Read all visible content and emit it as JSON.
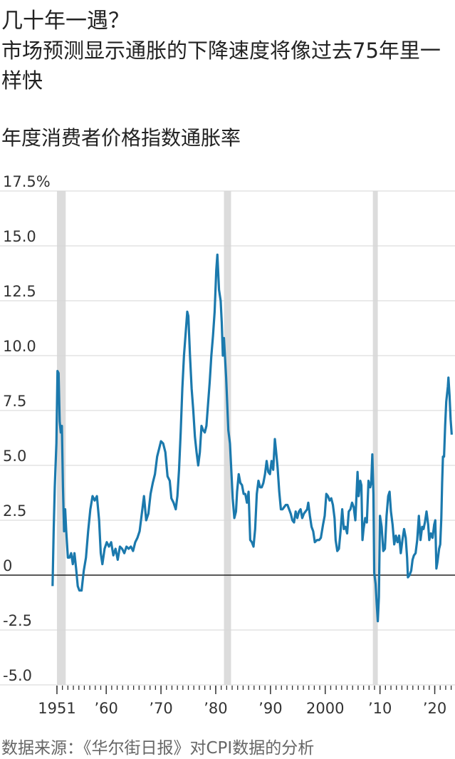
{
  "chart_data": {
    "type": "line",
    "title": "几十年一遇？",
    "subtitle": "市场预测显示通胀的下降速度将像过去75年里一样快",
    "y_label": "年度消费者价格指数通胀率",
    "source": "数据来源：《华尔街日报》对CPI数据的分析",
    "xlim": [
      1940.6,
      2023.7
    ],
    "ylim": [
      -5,
      17.5
    ],
    "yticks": [
      {
        "value": -5,
        "label": "-5.0"
      },
      {
        "value": -2.5,
        "label": "-2.5"
      },
      0,
      {
        "value": 2.5,
        "label": "2.5"
      },
      {
        "value": 5,
        "label": "5.0"
      },
      {
        "value": 7.5,
        "label": "7.5"
      },
      {
        "value": 10,
        "label": "10.0"
      },
      {
        "value": 12.5,
        "label": "12.5"
      },
      {
        "value": 15,
        "label": "15.0"
      },
      {
        "value": 17.5,
        "label": "17.5%"
      }
    ],
    "xticks": [
      1951,
      {
        "value": 1960,
        "label": "’60"
      },
      {
        "value": 1970,
        "label": "’70"
      },
      {
        "value": 1980,
        "label": "’80"
      },
      {
        "value": 1990,
        "label": "’90"
      },
      2000,
      {
        "value": 2010,
        "label": "’10"
      },
      {
        "value": 2020,
        "label": "’20"
      }
    ],
    "minor_xticks": [
      1951,
      1952,
      1953,
      1954,
      1955,
      1956,
      1957,
      1958,
      1959,
      1960,
      1961,
      1962,
      1963,
      1964,
      1965,
      1966,
      1967,
      1968,
      1969,
      1970,
      1971,
      1972,
      1973,
      1974,
      1975,
      1976,
      1977,
      1978,
      1979,
      1980,
      1981,
      1982,
      1983,
      1984,
      1985,
      1986,
      1987,
      1988,
      1989,
      1990,
      1991,
      1992,
      1993,
      1994,
      1995,
      1996,
      1997,
      1998,
      1999,
      2000,
      2001,
      2002,
      2003,
      2004,
      2005,
      2006,
      2007,
      2008,
      2009,
      2010,
      2011,
      2012,
      2013,
      2014,
      2015,
      2016,
      2017,
      2018,
      2019,
      2020,
      2021,
      2022,
      2023
    ],
    "shaded_periods": [
      [
        1951.0,
        1952.6
      ],
      [
        1981.5,
        1982.8
      ],
      [
        2008.7,
        2009.6
      ]
    ],
    "grid": true,
    "series": [
      {
        "color": "#1b79ad",
        "x": [
          1950.2,
          1950.4,
          1950.6,
          1950.9,
          1951.1,
          1951.3,
          1951.5,
          1951.7,
          1951.9,
          1952.1,
          1952.3,
          1952.5,
          1952.7,
          1953.0,
          1953.3,
          1953.6,
          1953.9,
          1954.2,
          1954.5,
          1954.8,
          1955.1,
          1955.5,
          1955.9,
          1956.3,
          1956.7,
          1957.1,
          1957.5,
          1957.9,
          1958.3,
          1958.7,
          1959.0,
          1959.3,
          1959.7,
          1960.1,
          1960.5,
          1960.9,
          1961.3,
          1961.7,
          1962.1,
          1962.5,
          1962.9,
          1963.3,
          1963.7,
          1964.1,
          1964.5,
          1964.9,
          1965.3,
          1965.7,
          1966.1,
          1966.5,
          1966.9,
          1967.3,
          1967.7,
          1968.1,
          1968.5,
          1968.9,
          1969.3,
          1969.7,
          1970.0,
          1970.4,
          1970.8,
          1971.2,
          1971.6,
          1971.9,
          1972.3,
          1972.7,
          1973.0,
          1973.3,
          1973.6,
          1973.9,
          1974.2,
          1974.5,
          1974.8,
          1975.0,
          1975.3,
          1975.6,
          1975.9,
          1976.2,
          1976.5,
          1976.8,
          1977.1,
          1977.4,
          1977.7,
          1978.0,
          1978.3,
          1978.6,
          1978.9,
          1979.2,
          1979.5,
          1979.8,
          1980.1,
          1980.3,
          1980.6,
          1980.9,
          1981.1,
          1981.3,
          1981.5,
          1981.7,
          1981.9,
          1982.1,
          1982.3,
          1982.6,
          1982.9,
          1983.1,
          1983.4,
          1983.7,
          1983.9,
          1984.2,
          1984.5,
          1984.8,
          1985.1,
          1985.4,
          1985.7,
          1986.0,
          1986.3,
          1986.6,
          1986.9,
          1987.2,
          1987.5,
          1987.8,
          1988.1,
          1988.4,
          1988.7,
          1989.0,
          1989.3,
          1989.6,
          1989.9,
          1990.2,
          1990.5,
          1990.8,
          1991.0,
          1991.3,
          1991.6,
          1991.9,
          1992.2,
          1992.5,
          1992.8,
          1993.1,
          1993.4,
          1993.7,
          1994.0,
          1994.3,
          1994.6,
          1994.9,
          1995.2,
          1995.5,
          1995.8,
          1996.1,
          1996.4,
          1996.7,
          1996.9,
          1997.2,
          1997.5,
          1997.8,
          1998.1,
          1998.5,
          1998.9,
          1999.2,
          1999.6,
          1999.9,
          2000.2,
          2000.5,
          2000.8,
          2001.1,
          2001.4,
          2001.7,
          2001.9,
          2002.2,
          2002.5,
          2002.8,
          2003.1,
          2003.4,
          2003.7,
          2004.0,
          2004.3,
          2004.6,
          2004.9,
          2005.2,
          2005.5,
          2005.7,
          2005.9,
          2006.1,
          2006.4,
          2006.6,
          2006.8,
          2007.0,
          2007.3,
          2007.6,
          2007.9,
          2008.2,
          2008.4,
          2008.6,
          2008.8,
          2008.95,
          2009.2,
          2009.4,
          2009.6,
          2009.8,
          2010.0,
          2010.3,
          2010.6,
          2010.9,
          2011.2,
          2011.5,
          2011.75,
          2012.0,
          2012.3,
          2012.6,
          2012.9,
          2013.2,
          2013.5,
          2013.8,
          2014.1,
          2014.4,
          2014.7,
          2014.95,
          2015.1,
          2015.4,
          2015.7,
          2015.95,
          2016.2,
          2016.5,
          2016.8,
          2017.1,
          2017.4,
          2017.7,
          2017.95,
          2018.2,
          2018.5,
          2018.8,
          2019.0,
          2019.3,
          2019.6,
          2019.9,
          2020.1,
          2020.3,
          2020.5,
          2020.8,
          2021.0,
          2021.2,
          2021.35,
          2021.5,
          2021.7,
          2021.9,
          2022.1,
          2022.4,
          2022.5,
          2022.7,
          2022.9,
          2023.1
        ],
        "values": [
          -0.5,
          2.0,
          4.0,
          6.0,
          9.3,
          9.2,
          7.0,
          6.5,
          6.8,
          4.0,
          2.0,
          3.0,
          2.0,
          0.8,
          0.8,
          1.0,
          0.5,
          1.0,
          0.3,
          -0.5,
          -0.7,
          -0.7,
          0.2,
          0.8,
          2.0,
          3.0,
          3.6,
          3.4,
          3.6,
          2.5,
          1.0,
          0.5,
          1.2,
          1.5,
          1.3,
          1.5,
          0.9,
          1.2,
          0.7,
          1.3,
          1.2,
          1.0,
          1.3,
          1.2,
          1.3,
          1.1,
          1.5,
          1.7,
          2.0,
          2.8,
          3.6,
          2.5,
          2.8,
          3.7,
          4.2,
          4.6,
          5.4,
          5.8,
          6.1,
          6.0,
          5.6,
          4.5,
          4.3,
          3.5,
          3.3,
          3.0,
          3.6,
          4.8,
          6.5,
          8.5,
          10.0,
          11.0,
          12.0,
          11.8,
          10.0,
          8.5,
          7.5,
          6.3,
          5.6,
          5.0,
          5.6,
          6.8,
          6.6,
          6.5,
          6.8,
          7.8,
          8.8,
          10.0,
          10.9,
          12.0,
          13.9,
          14.6,
          13.0,
          12.5,
          11.5,
          10.0,
          10.8,
          9.9,
          9.0,
          7.8,
          6.6,
          6.0,
          4.5,
          3.5,
          2.6,
          2.9,
          3.8,
          4.6,
          4.2,
          4.1,
          3.7,
          3.7,
          3.3,
          3.8,
          1.6,
          1.5,
          1.3,
          2.1,
          3.7,
          4.3,
          4.0,
          4.0,
          4.2,
          4.6,
          5.2,
          4.7,
          4.6,
          5.2,
          4.8,
          6.2,
          5.7,
          4.9,
          3.8,
          3.0,
          3.0,
          3.1,
          3.2,
          3.2,
          3.0,
          2.8,
          2.5,
          2.4,
          2.9,
          2.6,
          2.9,
          3.0,
          2.6,
          2.8,
          2.9,
          3.0,
          3.3,
          2.7,
          2.2,
          2.0,
          1.5,
          1.6,
          1.6,
          1.7,
          2.3,
          2.7,
          3.7,
          3.6,
          3.4,
          3.5,
          3.2,
          2.6,
          1.6,
          1.1,
          1.2,
          2.0,
          3.0,
          2.1,
          2.2,
          1.9,
          2.9,
          3.0,
          3.3,
          3.1,
          2.5,
          3.6,
          4.7,
          3.6,
          4.3,
          4.1,
          1.6,
          2.1,
          2.6,
          2.4,
          4.3,
          4.0,
          4.2,
          5.5,
          3.7,
          0.1,
          -0.4,
          -1.3,
          -2.1,
          -1.0,
          2.7,
          2.2,
          1.1,
          1.2,
          2.7,
          3.6,
          3.8,
          2.9,
          2.3,
          1.4,
          1.8,
          1.5,
          1.8,
          1.0,
          1.6,
          2.1,
          1.7,
          0.8,
          -0.1,
          0.0,
          0.2,
          0.7,
          0.9,
          1.0,
          1.6,
          2.7,
          1.6,
          2.2,
          2.1,
          2.4,
          2.9,
          2.3,
          1.6,
          1.9,
          1.7,
          2.3,
          2.5,
          0.3,
          0.6,
          1.2,
          1.4,
          2.6,
          4.2,
          5.4,
          5.4,
          6.8,
          7.9,
          8.6,
          9.0,
          8.2,
          7.1,
          6.4
        ]
      }
    ]
  }
}
